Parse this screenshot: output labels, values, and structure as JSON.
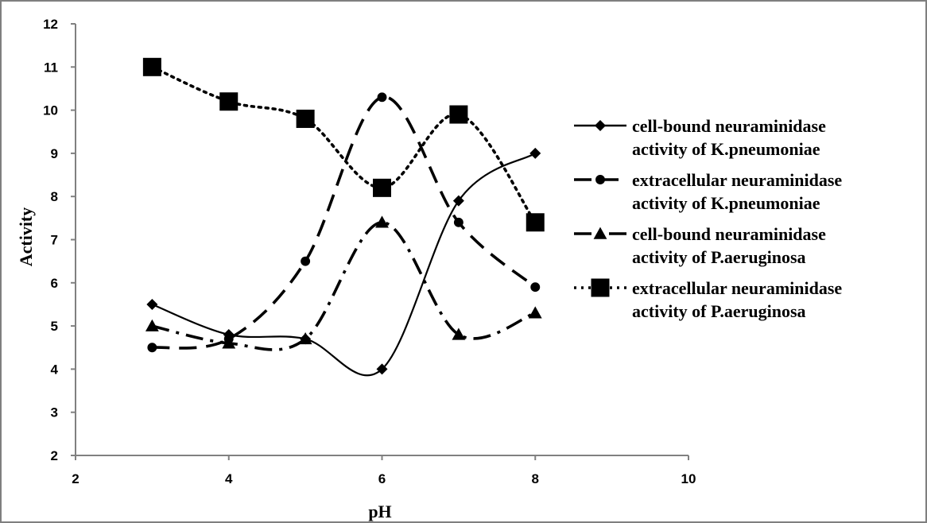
{
  "chart_data": {
    "type": "scatter",
    "title": "",
    "xlabel": "pH",
    "ylabel": "Activity",
    "xlim": [
      2,
      10
    ],
    "ylim": [
      2,
      12
    ],
    "x_ticks": [
      2,
      4,
      6,
      8,
      10
    ],
    "y_ticks": [
      2,
      3,
      4,
      5,
      6,
      7,
      8,
      9,
      10,
      11,
      12
    ],
    "grid": false,
    "legend_position": "right",
    "series": [
      {
        "name": "cell-bound neuraminidase activity of K.pneumoniae",
        "legend_lines": [
          "cell-bound neuraminidase",
          "activity of K.pneumoniae"
        ],
        "marker": "diamond",
        "line_style": "solid",
        "color": "#000000",
        "x": [
          3,
          4,
          5,
          6,
          7,
          8
        ],
        "y": [
          5.5,
          4.8,
          4.7,
          4.0,
          7.9,
          9.0
        ]
      },
      {
        "name": "extracellular neuraminidase activity of K.pneumoniae",
        "legend_lines": [
          "extracellular neuraminidase",
          "activity of K.pneumoniae"
        ],
        "marker": "circle",
        "line_style": "dash",
        "color": "#000000",
        "x": [
          3,
          4,
          5,
          6,
          7,
          8
        ],
        "y": [
          4.5,
          4.7,
          6.5,
          10.3,
          7.4,
          5.9
        ]
      },
      {
        "name": "cell-bound neuraminidase activity of P.aeruginosa",
        "legend_lines": [
          "cell-bound neuraminidase",
          "activity of P.aeruginosa"
        ],
        "marker": "triangle",
        "line_style": "dashdot",
        "color": "#000000",
        "x": [
          3,
          4,
          5,
          6,
          7,
          8
        ],
        "y": [
          5.0,
          4.6,
          4.7,
          7.4,
          4.8,
          5.3
        ]
      },
      {
        "name": "extracellular neuraminidase activity of P.aeruginosa",
        "legend_lines": [
          "extracellular neuraminidase",
          "activity of P.aeruginosa"
        ],
        "marker": "square",
        "line_style": "dot",
        "color": "#000000",
        "x": [
          3,
          4,
          5,
          6,
          7,
          8
        ],
        "y": [
          11.0,
          10.2,
          9.8,
          8.2,
          9.9,
          7.4
        ]
      }
    ]
  }
}
